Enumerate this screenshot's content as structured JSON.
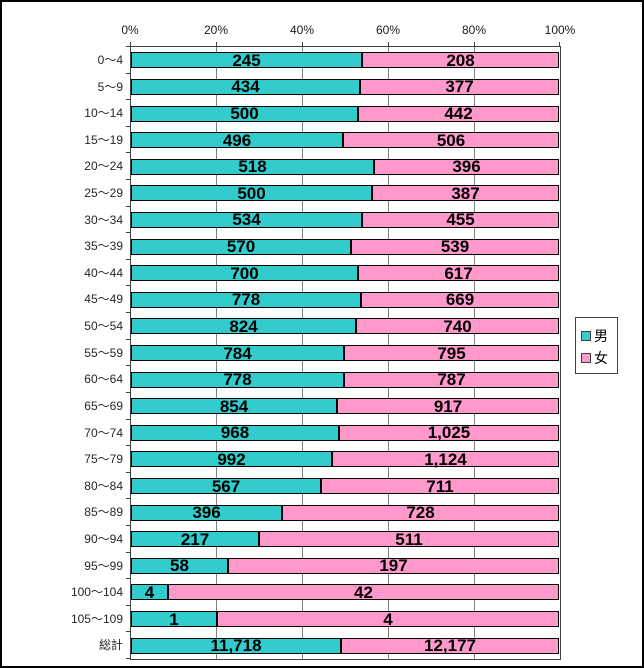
{
  "chart_data": {
    "type": "bar",
    "orientation": "horizontal",
    "stacking": "percent",
    "title": "",
    "xlabel": "",
    "ylabel": "",
    "xlim": [
      0,
      100
    ],
    "grid": true,
    "x_ticks": [
      "0%",
      "20%",
      "40%",
      "60%",
      "80%",
      "100%"
    ],
    "categories": [
      "0〜4",
      "5〜9",
      "10〜14",
      "15〜19",
      "20〜24",
      "25〜29",
      "30〜34",
      "35〜39",
      "40〜44",
      "45〜49",
      "50〜54",
      "55〜59",
      "60〜64",
      "65〜69",
      "70〜74",
      "75〜79",
      "80〜84",
      "85〜89",
      "90〜94",
      "95〜99",
      "100〜104",
      "105〜109",
      "総計"
    ],
    "series": [
      {
        "name": "男",
        "color": "#33CCCC",
        "values": [
          245,
          434,
          500,
          496,
          518,
          500,
          534,
          570,
          700,
          778,
          824,
          784,
          778,
          854,
          968,
          992,
          567,
          396,
          217,
          58,
          4,
          1,
          11718
        ],
        "labels": [
          "245",
          "434",
          "500",
          "496",
          "518",
          "500",
          "534",
          "570",
          "700",
          "778",
          "824",
          "784",
          "778",
          "854",
          "968",
          "992",
          "567",
          "396",
          "217",
          "58",
          "4",
          "1",
          "11,718"
        ]
      },
      {
        "name": "女",
        "color": "#FF99CC",
        "values": [
          208,
          377,
          442,
          506,
          396,
          387,
          455,
          539,
          617,
          669,
          740,
          795,
          787,
          917,
          1025,
          1124,
          711,
          728,
          511,
          197,
          42,
          4,
          12177
        ],
        "labels": [
          "208",
          "377",
          "442",
          "506",
          "396",
          "387",
          "455",
          "539",
          "617",
          "669",
          "740",
          "795",
          "787",
          "917",
          "1,025",
          "1,124",
          "711",
          "728",
          "511",
          "197",
          "42",
          "4",
          "12,177"
        ]
      }
    ],
    "legend_position": "right",
    "legend_entries": [
      "男",
      "女"
    ]
  }
}
